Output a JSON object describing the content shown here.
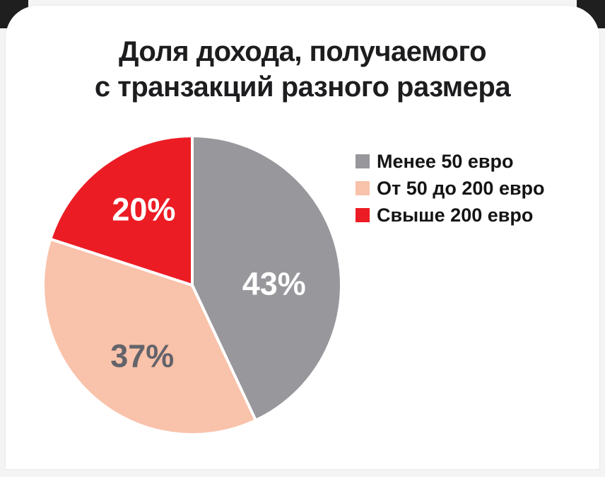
{
  "title": {
    "line1": "Доля дохода, получаемого",
    "line2": "с транзакций разного размера"
  },
  "chart_data": {
    "type": "pie",
    "title": "Доля дохода, получаемого с транзакций разного размера",
    "unit": "%",
    "direction": "clockwise",
    "start_angle_deg_from_top": 0,
    "legend_position": "right",
    "labels_inside": true,
    "slices": [
      {
        "label": "Менее 50 евро",
        "value": 43,
        "value_label": "43%",
        "color": "#97979C",
        "value_label_color": "#FFFFFF"
      },
      {
        "label": "От 50 до 200 евро",
        "value": 37,
        "value_label": "37%",
        "color": "#F9C2AA",
        "value_label_color": "#63636A"
      },
      {
        "label": "Свыше 200 евро",
        "value": 20,
        "value_label": "20%",
        "color": "#EC1C24",
        "value_label_color": "#FFFFFF"
      }
    ]
  },
  "colors": {
    "page_bg": "#F4F4F4",
    "card_bg": "#FFFFFF",
    "title_text": "#1D1D1F",
    "legend_text": "#141414",
    "slice_divider": "#FFFFFF"
  }
}
